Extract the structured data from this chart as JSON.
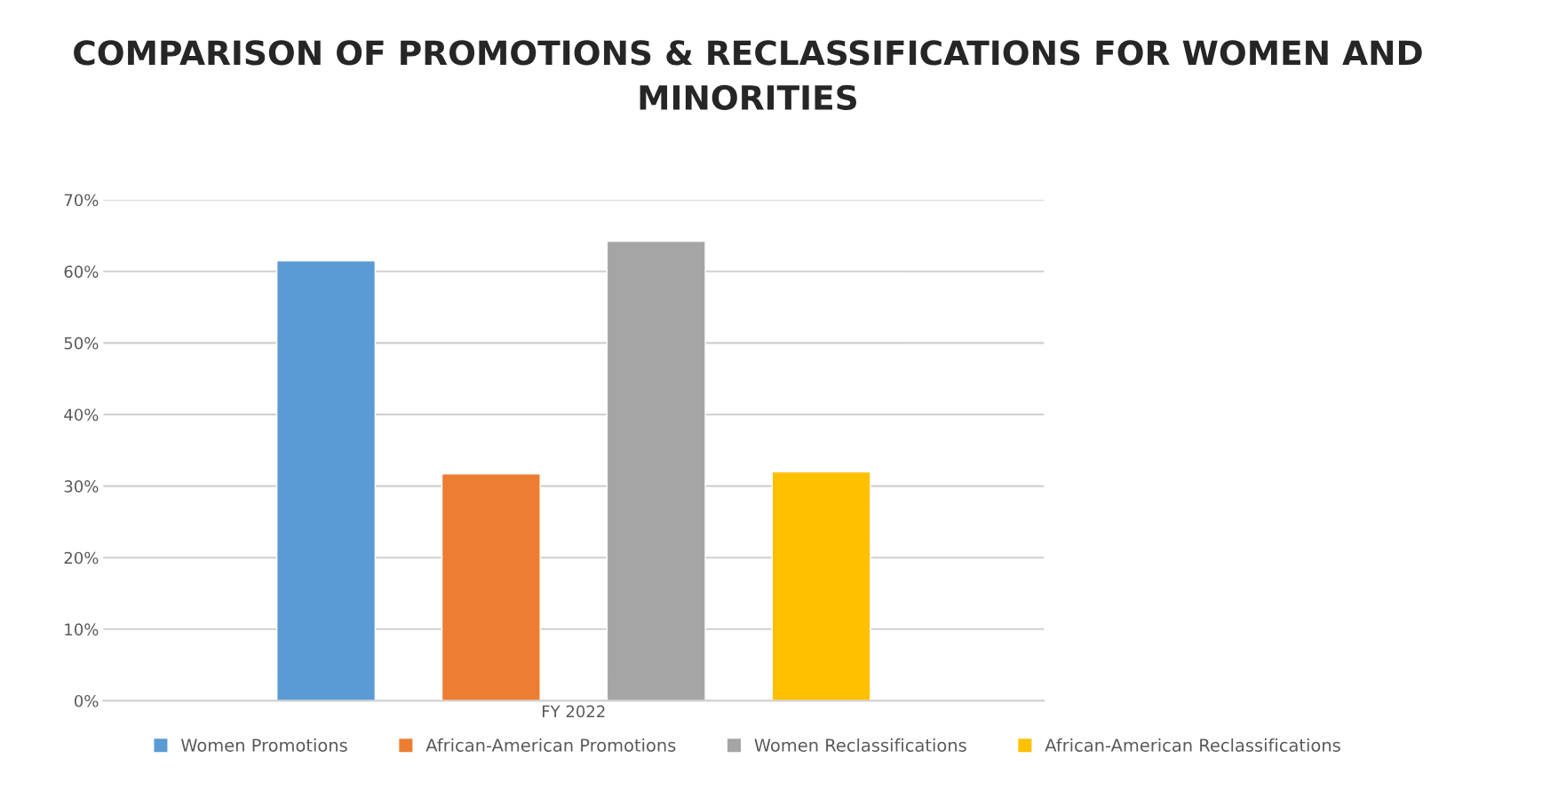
{
  "chart_data": {
    "type": "bar",
    "title": "COMPARISON OF PROMOTIONS & RECLASSIFICATIONS FOR WOMEN AND MINORITIES",
    "categories": [
      "FY 2022"
    ],
    "series": [
      {
        "name": "Women Promotions",
        "color": "#5b9bd5",
        "values": [
          61.5
        ]
      },
      {
        "name": "African-American Promotions",
        "color": "#ed7d31",
        "values": [
          31.7
        ]
      },
      {
        "name": "Women Reclassifications",
        "color": "#a5a5a5",
        "values": [
          64.2
        ]
      },
      {
        "name": "African-American Reclassifications",
        "color": "#ffc000",
        "values": [
          32.0
        ]
      }
    ],
    "ylim": [
      0,
      70
    ],
    "yticks": [
      {
        "value": 0,
        "label": "0%"
      },
      {
        "value": 10,
        "label": "10%"
      },
      {
        "value": 20,
        "label": "20%"
      },
      {
        "value": 30,
        "label": "30%"
      },
      {
        "value": 40,
        "label": "40%"
      },
      {
        "value": 50,
        "label": "50%"
      },
      {
        "value": 60,
        "label": "60%"
      },
      {
        "value": 70,
        "label": "70%"
      }
    ],
    "grid": "y",
    "legend": "bottom"
  }
}
